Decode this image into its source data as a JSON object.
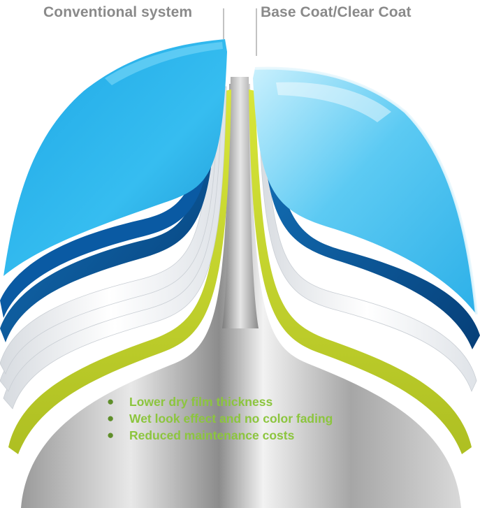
{
  "labels": {
    "left": "Conventional system",
    "right": "Base Coat/Clear Coat"
  },
  "benefits": [
    "Lower dry film thickness",
    "Wet look effect and no color fading",
    "Reduced maintenance costs"
  ],
  "colors": {
    "clear_coat": "#2fb6ea",
    "clear_coat_light": "#9fe0f8",
    "base_blue": "#0b5a9e",
    "primer_white": "#f1f3f5",
    "primer_green": "#c7d92e",
    "steel": "#b5b5b5",
    "label_gray": "#8a8a8a",
    "bullet_text": "#8cc53e"
  }
}
